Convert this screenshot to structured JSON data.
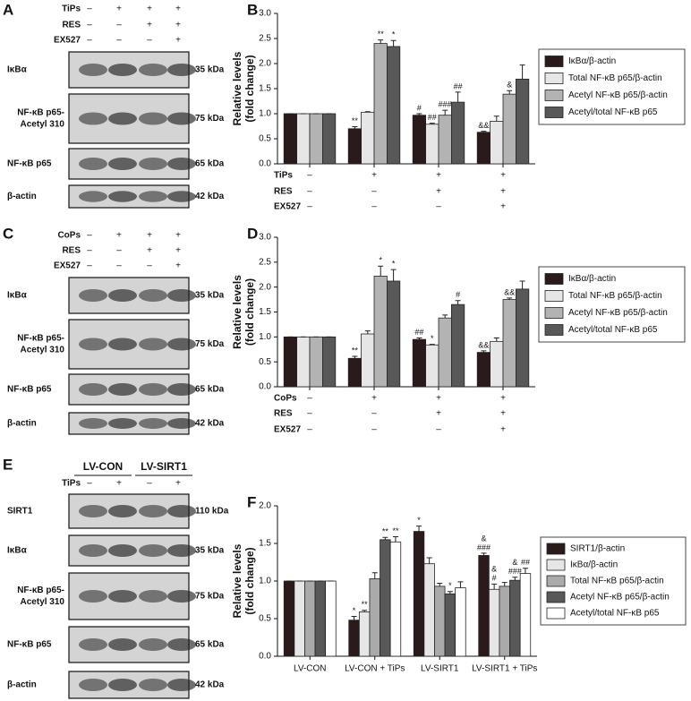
{
  "blots": [
    {
      "panel": "A",
      "conditions": [
        {
          "name": "TiPs",
          "signs": [
            "–",
            "+",
            "+",
            "+"
          ]
        },
        {
          "name": "RES",
          "signs": [
            "–",
            "–",
            "+",
            "+"
          ]
        },
        {
          "name": "EX527",
          "signs": [
            "–",
            "–",
            "–",
            "+"
          ]
        }
      ],
      "rows": [
        {
          "protein": [
            "IκBα"
          ],
          "size": "35 kDa"
        },
        {
          "protein": [
            "NF-κB p65-",
            "Acetyl 310"
          ],
          "size": "75 kDa"
        },
        {
          "protein": [
            "NF-κB p65"
          ],
          "size": "65 kDa"
        },
        {
          "protein": [
            "β-actin"
          ],
          "size": "42 kDa"
        }
      ]
    },
    {
      "panel": "C",
      "conditions": [
        {
          "name": "CoPs",
          "signs": [
            "–",
            "+",
            "+",
            "+"
          ]
        },
        {
          "name": "RES",
          "signs": [
            "–",
            "–",
            "+",
            "+"
          ]
        },
        {
          "name": "EX527",
          "signs": [
            "–",
            "–",
            "–",
            "+"
          ]
        }
      ],
      "rows": [
        {
          "protein": [
            "IκBα"
          ],
          "size": "35 kDa"
        },
        {
          "protein": [
            "NF-κB p65-",
            "Acetyl 310"
          ],
          "size": "75 kDa"
        },
        {
          "protein": [
            "NF-κB p65"
          ],
          "size": "65 kDa"
        },
        {
          "protein": [
            "β-actin"
          ],
          "size": "42 kDa"
        }
      ]
    },
    {
      "panel": "E",
      "groups": [
        "LV-CON",
        "LV-SIRT1"
      ],
      "conditions": [
        {
          "name": "TiPs",
          "signs": [
            "–",
            "+",
            "–",
            "+"
          ]
        }
      ],
      "rows": [
        {
          "protein": [
            "SIRT1"
          ],
          "size": "110 kDa"
        },
        {
          "protein": [
            "IκBα"
          ],
          "size": "35 kDa"
        },
        {
          "protein": [
            "NF-κB p65-",
            "Acetyl 310"
          ],
          "size": "75 kDa"
        },
        {
          "protein": [
            "NF-κB p65"
          ],
          "size": "65 kDa"
        },
        {
          "protein": [
            "β-actin"
          ],
          "size": "42 kDa"
        }
      ]
    }
  ],
  "chart_data": [
    {
      "type": "bar",
      "panel": "B",
      "ylabel": [
        "Relative levels",
        "(fold change)"
      ],
      "conditions": [
        {
          "name": "TiPs",
          "signs": [
            "–",
            "+",
            "+",
            "+"
          ]
        },
        {
          "name": "RES",
          "signs": [
            "–",
            "–",
            "+",
            "+"
          ]
        },
        {
          "name": "EX527",
          "signs": [
            "–",
            "–",
            "–",
            "+"
          ]
        }
      ],
      "ylim": [
        0,
        3
      ],
      "yticks": [
        {
          "value": 0,
          "label": "0.0"
        },
        0.5,
        {
          "value": 1,
          "label": "1.0"
        },
        1.5,
        {
          "value": 2,
          "label": "2.0"
        },
        2.5,
        {
          "value": 3,
          "label": "3.0"
        }
      ],
      "series": [
        {
          "name": "IκBα/β-actin",
          "color": "#2b1a1c",
          "values": [
            1,
            0.7,
            0.97,
            0.63
          ],
          "errors": [
            0,
            0.04,
            0.03,
            0.02
          ],
          "annotations": [
            null,
            [
              "**"
            ],
            [
              "#"
            ],
            [
              "&&"
            ]
          ]
        },
        {
          "name": "Total NF-κB p65/β-actin",
          "color": "#e6e6e6",
          "values": [
            1,
            1.03,
            0.79,
            0.85
          ],
          "errors": [
            0,
            0.01,
            0.02,
            0.1
          ],
          "annotations": [
            null,
            null,
            [
              "##"
            ],
            null
          ]
        },
        {
          "name": "Acetyl NF-κB p65/β-actin",
          "color": "#b3b3b3",
          "values": [
            1,
            2.4,
            0.97,
            1.39
          ],
          "errors": [
            0,
            0.07,
            0.1,
            0.07
          ],
          "annotations": [
            null,
            [
              "**"
            ],
            [
              "###"
            ],
            [
              "&"
            ]
          ]
        },
        {
          "name": "Acetyl/total NF-κB p65",
          "color": "#585858",
          "values": [
            1,
            2.34,
            1.23,
            1.69
          ],
          "errors": [
            0,
            0.12,
            0.2,
            0.28
          ],
          "annotations": [
            null,
            [
              "*"
            ],
            [
              "##"
            ],
            null
          ]
        }
      ]
    },
    {
      "type": "bar",
      "panel": "D",
      "ylabel": [
        "Relative levels",
        "(fold change)"
      ],
      "conditions": [
        {
          "name": "CoPs",
          "signs": [
            "–",
            "+",
            "+",
            "+"
          ]
        },
        {
          "name": "RES",
          "signs": [
            "–",
            "–",
            "+",
            "+"
          ]
        },
        {
          "name": "EX527",
          "signs": [
            "–",
            "–",
            "–",
            "+"
          ]
        }
      ],
      "ylim": [
        0,
        3
      ],
      "yticks": [
        {
          "value": 0,
          "label": "0.0"
        },
        0.5,
        {
          "value": 1,
          "label": "1.0"
        },
        1.5,
        {
          "value": 2,
          "label": "2.0"
        },
        2.5,
        {
          "value": 3,
          "label": "3.0"
        }
      ],
      "series": [
        {
          "name": "IκBα/β-actin",
          "color": "#2b1a1c",
          "values": [
            1,
            0.57,
            0.95,
            0.69
          ],
          "errors": [
            0,
            0.04,
            0.03,
            0.03
          ],
          "annotations": [
            null,
            [
              "**"
            ],
            [
              "##"
            ],
            [
              "&&"
            ]
          ]
        },
        {
          "name": "Total NF-κB p65/β-actin",
          "color": "#e6e6e6",
          "values": [
            1,
            1.06,
            0.84,
            0.91
          ],
          "errors": [
            0,
            0.06,
            0.01,
            0.07
          ],
          "annotations": [
            null,
            null,
            [
              "*"
            ],
            null
          ]
        },
        {
          "name": "Acetyl NF-κB p65/β-actin",
          "color": "#b3b3b3",
          "values": [
            1,
            2.22,
            1.38,
            1.75
          ],
          "errors": [
            0,
            0.2,
            0.06,
            0.03
          ],
          "annotations": [
            null,
            [
              "*"
            ],
            null,
            [
              "&&"
            ]
          ]
        },
        {
          "name": "Acetyl/total NF-κB p65",
          "color": "#585858",
          "values": [
            1,
            2.12,
            1.65,
            1.96
          ],
          "errors": [
            0,
            0.23,
            0.08,
            0.16
          ],
          "annotations": [
            null,
            [
              "*"
            ],
            [
              "#"
            ],
            null
          ]
        }
      ]
    },
    {
      "type": "bar",
      "panel": "F",
      "ylabel": [
        "Relative levels",
        "(fold change)"
      ],
      "categories": [
        "LV-CON",
        "LV-CON + TiPs",
        "LV-SIRT1",
        "LV-SIRT1 + TiPs"
      ],
      "ylim": [
        0,
        2
      ],
      "yticks": [
        {
          "value": 0,
          "label": "0.0"
        },
        0.5,
        {
          "value": 1,
          "label": "1.0"
        },
        1.5,
        {
          "value": 2,
          "label": "2.0"
        }
      ],
      "series": [
        {
          "name": "SIRT1/β-actin",
          "color": "#2b1a1c",
          "values": [
            1,
            0.48,
            1.66,
            1.34
          ],
          "errors": [
            0,
            0.05,
            0.07,
            0.03
          ],
          "annotations": [
            null,
            [
              "*"
            ],
            [
              "*"
            ],
            [
              "&",
              "###"
            ]
          ]
        },
        {
          "name": "IκBα/β-actin",
          "color": "#e6e6e6",
          "values": [
            1,
            0.59,
            1.23,
            0.89
          ],
          "errors": [
            0,
            0.02,
            0.08,
            0.07
          ],
          "annotations": [
            null,
            [
              "**"
            ],
            null,
            [
              "&",
              "#"
            ]
          ]
        },
        {
          "name": "Total NF-κB p65/β-actin",
          "color": "#aaaaaa",
          "values": [
            1,
            1.03,
            0.93,
            0.93
          ],
          "errors": [
            0,
            0.08,
            0.04,
            0.05
          ],
          "annotations": [
            null,
            null,
            null,
            null
          ]
        },
        {
          "name": "Acetyl NF-κB p65/β-actin",
          "color": "#585858",
          "values": [
            1,
            1.55,
            0.83,
            1.01
          ],
          "errors": [
            0,
            0.03,
            0.03,
            0.04
          ],
          "annotations": [
            null,
            [
              "**"
            ],
            [
              "*"
            ],
            [
              "&",
              "###"
            ]
          ]
        },
        {
          "name": "Acetyl/total NF-κB p65",
          "color": "#ffffff",
          "values": [
            1,
            1.52,
            0.91,
            1.1
          ],
          "errors": [
            0,
            0.07,
            0.08,
            0.07
          ],
          "annotations": [
            null,
            [
              "**"
            ],
            null,
            [
              "##"
            ]
          ]
        }
      ]
    }
  ]
}
